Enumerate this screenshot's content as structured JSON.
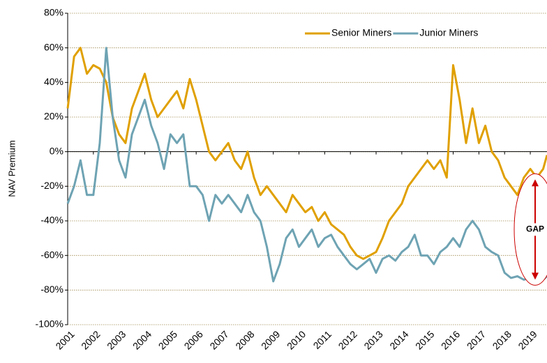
{
  "chart_data": {
    "type": "line",
    "y_label": "NAV Premium",
    "annotations": [
      "GAP"
    ],
    "x": [
      2001,
      2001.25,
      2001.5,
      2001.75,
      2002,
      2002.25,
      2002.5,
      2002.75,
      2003,
      2003.25,
      2003.5,
      2003.75,
      2004,
      2004.25,
      2004.5,
      2004.75,
      2005,
      2005.25,
      2005.5,
      2005.75,
      2006,
      2006.25,
      2006.5,
      2006.75,
      2007,
      2007.25,
      2007.5,
      2007.75,
      2008,
      2008.25,
      2008.5,
      2008.75,
      2009,
      2009.25,
      2009.5,
      2009.75,
      2010,
      2010.25,
      2010.5,
      2010.75,
      2011,
      2011.25,
      2011.5,
      2011.75,
      2012,
      2012.25,
      2012.5,
      2012.75,
      2013,
      2013.25,
      2013.5,
      2013.75,
      2014,
      2014.25,
      2014.5,
      2014.75,
      2015,
      2015.25,
      2015.5,
      2015.75,
      2016,
      2016.25,
      2016.5,
      2016.75,
      2017,
      2017.25,
      2017.5,
      2017.75,
      2018,
      2018.25,
      2018.5,
      2018.75,
      2019,
      2019.25,
      2019.5,
      2019.65
    ],
    "series": [
      {
        "name": "Senior Miners",
        "color": "#e0a000",
        "values": [
          25,
          55,
          60,
          45,
          50,
          48,
          40,
          20,
          10,
          5,
          25,
          35,
          45,
          30,
          20,
          25,
          30,
          35,
          25,
          42,
          30,
          15,
          0,
          -5,
          0,
          5,
          -5,
          -10,
          0,
          -15,
          -25,
          -20,
          -25,
          -30,
          -35,
          -25,
          -30,
          -35,
          -32,
          -40,
          -35,
          -42,
          -45,
          -48,
          -55,
          -60,
          -62,
          -60,
          -58,
          -50,
          -40,
          -35,
          -30,
          -20,
          -15,
          -10,
          -5,
          -10,
          -5,
          -15,
          50,
          30,
          5,
          25,
          5,
          15,
          0,
          -5,
          -15,
          -20,
          -25,
          -15,
          -10,
          -15,
          -10,
          -2
        ]
      },
      {
        "name": "Junior Miners",
        "color": "#6ea3b3",
        "values": [
          -30,
          -20,
          -5,
          -25,
          -25,
          5,
          60,
          20,
          -5,
          -15,
          10,
          20,
          30,
          15,
          5,
          -10,
          10,
          5,
          10,
          -20,
          -20,
          -25,
          -40,
          -25,
          -30,
          -25,
          -30,
          -35,
          -25,
          -35,
          -40,
          -55,
          -75,
          -65,
          -50,
          -45,
          -55,
          -50,
          -45,
          -55,
          -50,
          -48,
          -55,
          -60,
          -65,
          -68,
          -65,
          -62,
          -70,
          -62,
          -60,
          -63,
          -58,
          -55,
          -48,
          -60,
          -60,
          -65,
          -58,
          -55,
          -50,
          -55,
          -45,
          -40,
          -45,
          -55,
          -58,
          -60,
          -70,
          -73,
          -72,
          -74,
          -73,
          -75,
          -74,
          -72
        ]
      }
    ],
    "xlim": [
      2001,
      2019.65
    ],
    "xticks": [
      2001,
      2002,
      2003,
      2004,
      2005,
      2006,
      2007,
      2008,
      2009,
      2010,
      2011,
      2012,
      2013,
      2014,
      2015,
      2016,
      2017,
      2018,
      2019
    ],
    "ylim": [
      -100,
      80
    ],
    "yticks": [
      {
        "value": -100,
        "label": "-100%"
      },
      {
        "value": -80,
        "label": "-80%"
      },
      {
        "value": -60,
        "label": "-60%"
      },
      {
        "value": -40,
        "label": "-40%"
      },
      {
        "value": -20,
        "label": "-20%"
      },
      {
        "value": 0,
        "label": "0%"
      },
      {
        "value": 20,
        "label": "20%"
      },
      {
        "value": 40,
        "label": "40%"
      },
      {
        "value": 60,
        "label": "60%"
      },
      {
        "value": 80,
        "label": "80%"
      }
    ],
    "grid": true,
    "legend": "top-right"
  }
}
